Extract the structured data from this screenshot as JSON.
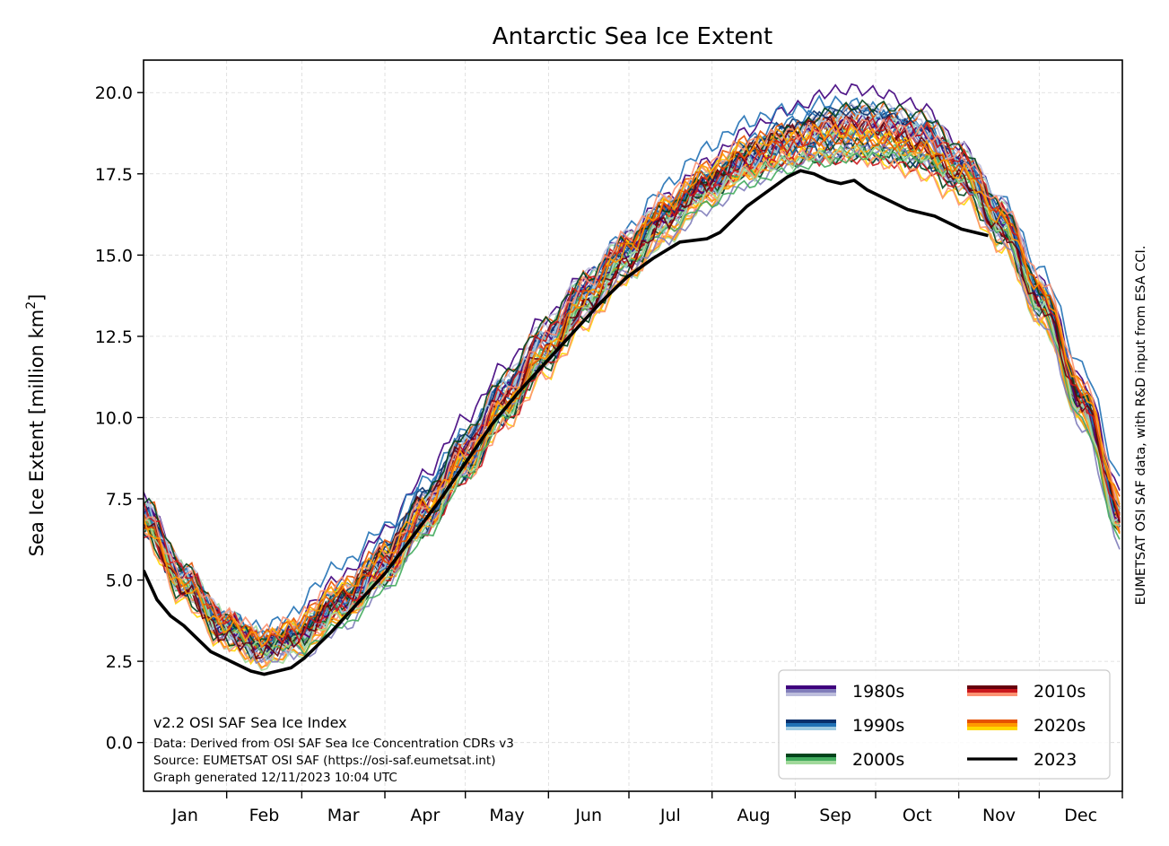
{
  "chart_data": {
    "type": "line",
    "title": "Antarctic Sea Ice Extent",
    "ylabel": "Sea Ice Extent [million km",
    "ylabel_sup": "2",
    "ylabel_close": "]",
    "xlabel": "",
    "xlim": [
      0,
      365
    ],
    "ylim": [
      -1.5,
      21.0
    ],
    "yticks": [
      0.0,
      2.5,
      5.0,
      7.5,
      10.0,
      12.5,
      15.0,
      17.5,
      20.0
    ],
    "ytick_labels": [
      "0.0",
      "2.5",
      "5.0",
      "7.5",
      "10.0",
      "12.5",
      "15.0",
      "17.5",
      "20.0"
    ],
    "month_labels": [
      "Jan",
      "Feb",
      "Mar",
      "Apr",
      "May",
      "Jun",
      "Jul",
      "Aug",
      "Sep",
      "Oct",
      "Nov",
      "Dec"
    ],
    "grid": true,
    "legend_position": "lower-right",
    "legend": [
      {
        "label": "1980s",
        "colors": [
          "#3f007d",
          "#807dba",
          "#bcbddc"
        ]
      },
      {
        "label": "1990s",
        "colors": [
          "#08306b",
          "#2171b5",
          "#9ecae1"
        ]
      },
      {
        "label": "2000s",
        "colors": [
          "#00441b",
          "#41ab5d",
          "#a1d99b"
        ]
      },
      {
        "label": "2010s",
        "colors": [
          "#67000d",
          "#cb181d",
          "#fc9272"
        ]
      },
      {
        "label": "2020s",
        "colors": [
          "#e65100",
          "#ff9800",
          "#ffd600"
        ]
      },
      {
        "label": "2023",
        "colors": [
          "#000000"
        ]
      }
    ],
    "climatology": {
      "day": [
        0,
        15,
        30,
        45,
        55,
        75,
        90,
        105,
        120,
        135,
        150,
        165,
        180,
        195,
        210,
        225,
        240,
        255,
        265,
        275,
        290,
        305,
        320,
        335,
        350,
        365
      ],
      "extent": [
        7.0,
        5.0,
        3.6,
        3.0,
        3.3,
        4.5,
        5.7,
        7.3,
        9.0,
        10.7,
        12.3,
        13.8,
        15.1,
        16.3,
        17.3,
        18.1,
        18.6,
        18.9,
        19.0,
        18.9,
        18.6,
        17.7,
        16.1,
        13.7,
        10.6,
        7.0
      ]
    },
    "series": [
      {
        "name": "2023",
        "color": "#000000",
        "day": [
          0,
          5,
          10,
          15,
          20,
          25,
          30,
          35,
          40,
          45,
          50,
          55,
          60,
          70,
          80,
          90,
          100,
          110,
          120,
          130,
          140,
          150,
          160,
          170,
          180,
          190,
          200,
          210,
          215,
          220,
          225,
          230,
          235,
          240,
          245,
          250,
          255,
          260,
          265,
          270,
          275,
          280,
          285,
          290,
          295,
          300,
          305,
          310,
          315
        ],
        "extent": [
          5.3,
          4.4,
          3.9,
          3.6,
          3.2,
          2.8,
          2.6,
          2.4,
          2.2,
          2.1,
          2.2,
          2.3,
          2.6,
          3.4,
          4.3,
          5.2,
          6.3,
          7.4,
          8.6,
          9.8,
          10.8,
          11.7,
          12.6,
          13.5,
          14.3,
          14.9,
          15.4,
          15.5,
          15.7,
          16.1,
          16.5,
          16.8,
          17.1,
          17.4,
          17.6,
          17.5,
          17.3,
          17.2,
          17.3,
          17.0,
          16.8,
          16.6,
          16.4,
          16.3,
          16.2,
          16.0,
          15.8,
          15.7,
          15.6
        ]
      }
    ]
  },
  "notes": {
    "line1": "v2.2 OSI SAF Sea Ice Index",
    "line2": "Data: Derived from OSI SAF Sea Ice Concentration CDRs v3",
    "line3": "Source: EUMETSAT OSI SAF (https://osi-saf.eumetsat.int)",
    "line4": "Graph generated 12/11/2023 10:04 UTC"
  },
  "credit": "EUMETSAT OSI SAF data, with R&D input from ESA CCI."
}
